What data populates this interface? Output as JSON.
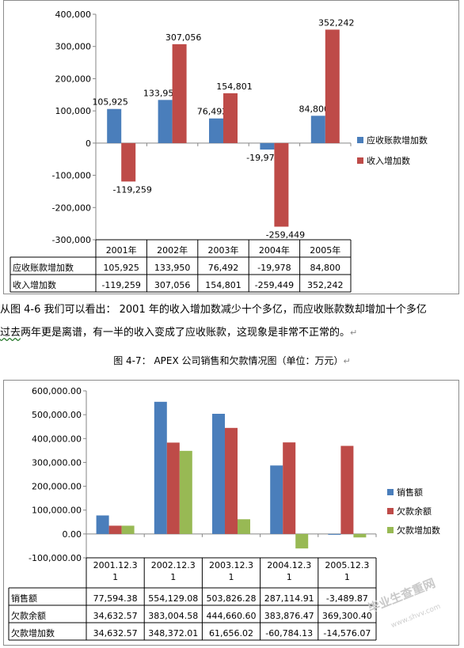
{
  "charts": [
    {
      "type": "bar",
      "yTicks": [
        "400,000",
        "300,000",
        "200,000",
        "100,000",
        "0",
        "-100,000",
        "-200,000",
        "-300,000"
      ],
      "ylim": [
        -300000,
        400000
      ],
      "categories": [
        "2001年",
        "2002年",
        "2003年",
        "2004年",
        "2005年"
      ],
      "series": [
        {
          "name": "应收账款增加数",
          "color": "#4a7ebb",
          "values": [
            105925,
            133950,
            76492,
            -19978,
            84800
          ],
          "labels": [
            "105,925",
            "133,950",
            "76,492",
            "-19,978",
            "84,800"
          ]
        },
        {
          "name": "收入增加数",
          "color": "#be4b48",
          "values": [
            -119259,
            307056,
            154801,
            -259449,
            352242
          ],
          "labels": [
            "-119,259",
            "307,056",
            "154,801",
            "-259,449",
            "352,242"
          ]
        }
      ],
      "legend_position": "right",
      "gridlines": false
    },
    {
      "type": "bar",
      "yTicks": [
        "600,000.00",
        "500,000.00",
        "400,000.00",
        "300,000.00",
        "200,000.00",
        "100,000.00",
        "0.00",
        "-100,000.00"
      ],
      "ylim": [
        -100000,
        600000
      ],
      "categories": [
        [
          "2001.12.3",
          "1"
        ],
        [
          "2002.12.3",
          "1"
        ],
        [
          "2003.12.3",
          "1"
        ],
        [
          "2004.12.3",
          "1"
        ],
        [
          "2005.12.3",
          "1"
        ]
      ],
      "series": [
        {
          "name": "销售额",
          "color": "#4a7ebb",
          "values": [
            77594.38,
            554129.08,
            503826.28,
            287114.91,
            -3489.87
          ],
          "labels": [
            "77,594.38",
            "554,129.08",
            "503,826.28",
            "287,114.91",
            "-3,489.87"
          ]
        },
        {
          "name": "欠款余额",
          "color": "#be4b48",
          "values": [
            34632.57,
            383004.58,
            444660.6,
            383876.47,
            369300.4
          ],
          "labels": [
            "34,632.57",
            "383,004.58",
            "444,660.60",
            "383,876.47",
            "369,300.40"
          ]
        },
        {
          "name": "欠款增加数",
          "color": "#98b954",
          "values": [
            34632.57,
            348372.01,
            61656.02,
            -60784.13,
            -14576.07
          ],
          "labels": [
            "34,632.57",
            "348,372.01",
            "61,656.02",
            "-60,784.13",
            "-14,576.07"
          ]
        }
      ],
      "legend_position": "right",
      "gridlines": false
    }
  ],
  "paragraph": {
    "line1_a": "从图 4-6 我们可以看出：  2001 年的收入增加数减少十个多亿，而应收账款数却增加十个多亿",
    "line2_a": "过去",
    "line2_b": "两年更是离谱，有一半的收入变成了应收账款，这现象是非常不正常的。",
    "para_mark": "↵"
  },
  "caption": "图  4-7：  APEX 公司销售和欠款情况图（单位：万元）",
  "caption_mark": "↵",
  "watermark": {
    "text": "毕业生查重网",
    "url": "www.shvv.com"
  }
}
